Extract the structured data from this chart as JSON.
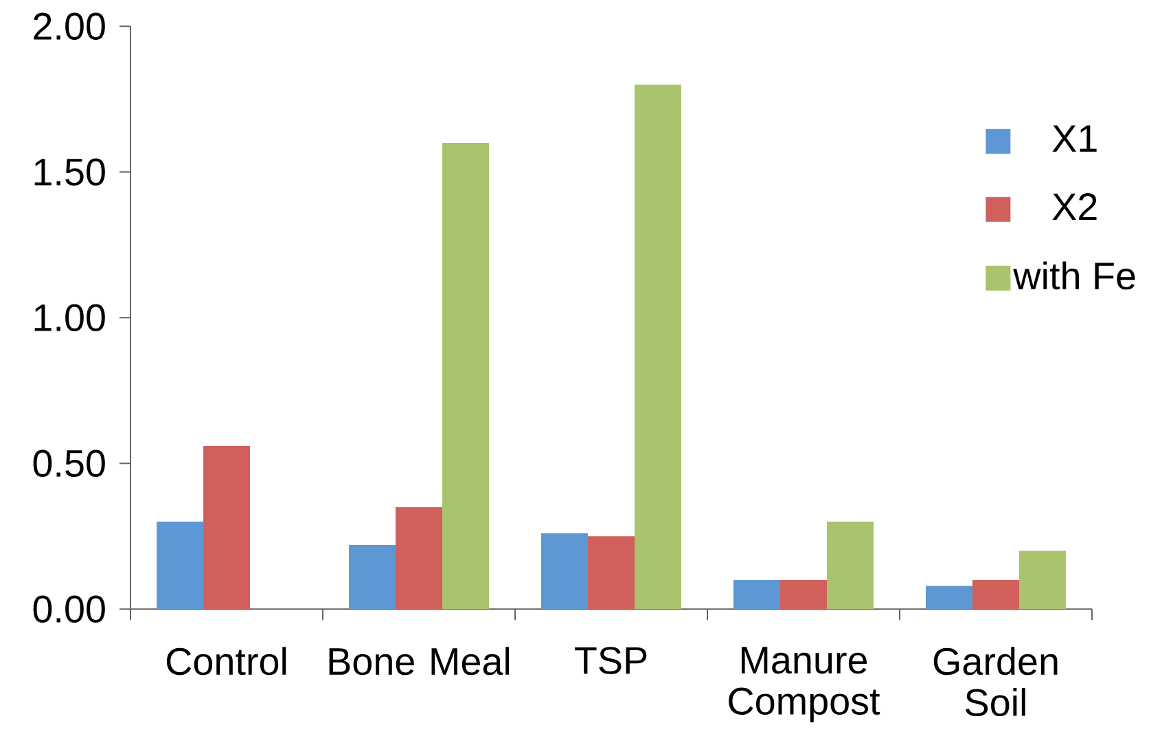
{
  "chart_data": {
    "type": "bar",
    "categories": [
      "Control",
      "Bone Meal",
      "TSP",
      "Manure Compost",
      "Garden Soil"
    ],
    "series": [
      {
        "name": "X1",
        "color": "#5e98d4",
        "values": [
          0.3,
          0.22,
          0.26,
          0.1,
          0.08
        ]
      },
      {
        "name": "X2",
        "color": "#d1605c",
        "values": [
          0.56,
          0.35,
          0.25,
          0.1,
          0.1
        ]
      },
      {
        "name": "with Fe",
        "color": "#a9c46c",
        "values": [
          null,
          1.6,
          1.8,
          0.3,
          0.2
        ]
      }
    ],
    "ylim": [
      0,
      2
    ],
    "yticks": [
      {
        "value": 0,
        "label": "0.00"
      },
      {
        "value": 0.5,
        "label": "0.50"
      },
      {
        "value": 1,
        "label": "1.00"
      },
      {
        "value": 1.5,
        "label": "1.50"
      },
      {
        "value": 2,
        "label": "2.00"
      }
    ],
    "legend": "right",
    "grid": false
  }
}
